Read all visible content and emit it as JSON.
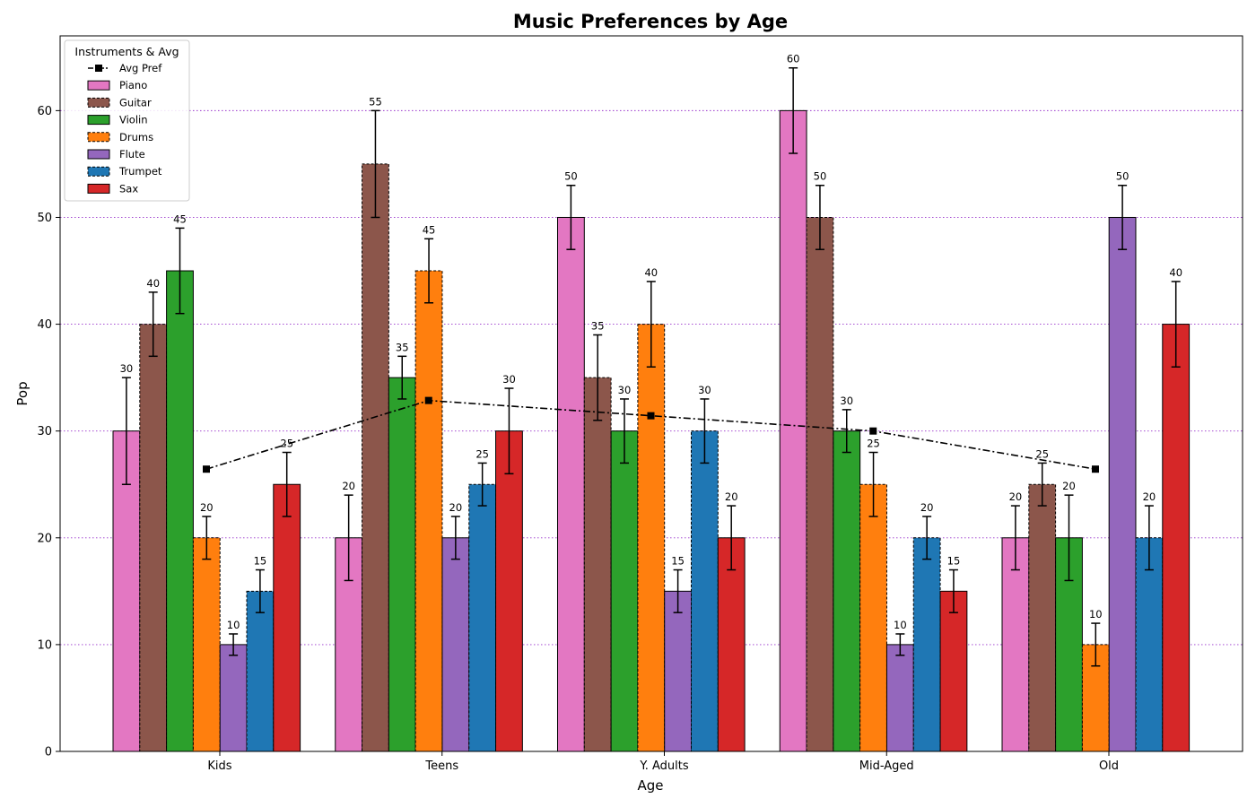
{
  "chart_data": {
    "type": "bar",
    "title": "Music Preferences by Age",
    "xlabel": "Age",
    "ylabel": "Pop",
    "ylim": [
      0,
      67
    ],
    "yticks": [
      0,
      10,
      20,
      30,
      40,
      50,
      60
    ],
    "grid": "horizontal dotted (purple)",
    "categories": [
      "Kids",
      "Teens",
      "Y. Adults",
      "Mid-Aged",
      "Old"
    ],
    "series": [
      {
        "name": "Piano",
        "values": [
          30,
          20,
          50,
          60,
          20
        ],
        "errors": [
          5,
          4,
          3,
          4,
          3
        ],
        "color": "#e377c2",
        "dashed": false
      },
      {
        "name": "Guitar",
        "values": [
          40,
          55,
          35,
          50,
          25
        ],
        "errors": [
          3,
          5,
          4,
          3,
          2
        ],
        "color": "#8c564b",
        "dashed": true
      },
      {
        "name": "Violin",
        "values": [
          45,
          35,
          30,
          30,
          20
        ],
        "errors": [
          4,
          2,
          3,
          2,
          4
        ],
        "color": "#2ca02c",
        "dashed": false
      },
      {
        "name": "Drums",
        "values": [
          20,
          45,
          40,
          25,
          10
        ],
        "errors": [
          2,
          3,
          4,
          3,
          2
        ],
        "color": "#ff7f0e",
        "dashed": true
      },
      {
        "name": "Flute",
        "values": [
          10,
          20,
          15,
          10,
          50
        ],
        "errors": [
          1,
          2,
          2,
          1,
          3
        ],
        "color": "#9467bd",
        "dashed": false
      },
      {
        "name": "Trumpet",
        "values": [
          15,
          25,
          30,
          20,
          20
        ],
        "errors": [
          2,
          2,
          3,
          2,
          3
        ],
        "color": "#1f77b4",
        "dashed": true
      },
      {
        "name": "Sax",
        "values": [
          25,
          30,
          20,
          15,
          40
        ],
        "errors": [
          3,
          4,
          3,
          2,
          4
        ],
        "color": "#d62728",
        "dashed": false
      }
    ],
    "avg_line": {
      "name": "Avg Pref",
      "values": [
        26.43,
        32.86,
        31.43,
        30.0,
        26.43
      ],
      "color": "#000000",
      "style": "dash-dot",
      "marker": "square"
    },
    "legend": {
      "title": "Instruments & Avg",
      "placement": "top-left"
    }
  }
}
